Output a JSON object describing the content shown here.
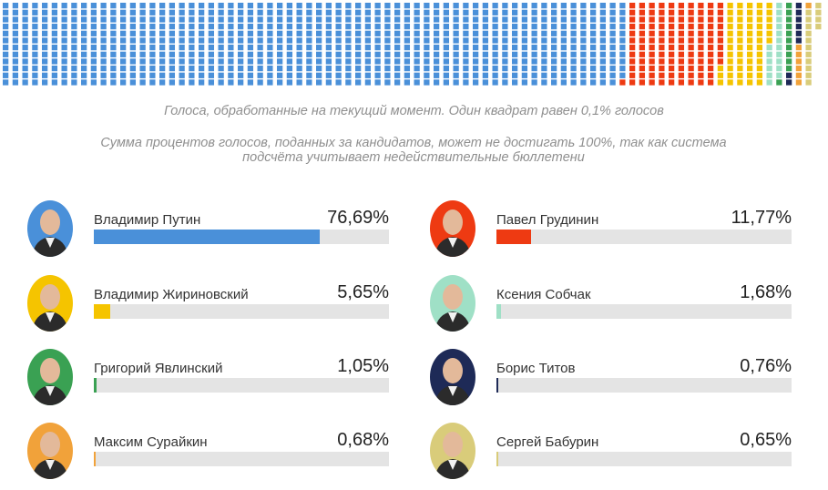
{
  "notes": {
    "line1": "Голоса, обработанные на текущий момент. Один квадрат равен 0,1% голосов",
    "line2": "Сумма процентов голосов, поданных за кандидатов, может не достигать 100%, так как система подсчёта учитывает недействительные бюллетени"
  },
  "chart_data": {
    "type": "bar",
    "categories": [
      "Владимир Путин",
      "Павел Грудинин",
      "Владимир Жириновский",
      "Ксения Собчак",
      "Григорий Явлинский",
      "Борис Титов",
      "Максим Сурайкин",
      "Сергей Бабурин"
    ],
    "series": [
      {
        "values": [
          76.69,
          11.77,
          5.65,
          1.68,
          1.05,
          0.76,
          0.68,
          0.65
        ]
      }
    ],
    "value_labels": [
      "76,69%",
      "11,77%",
      "5,65%",
      "1,68%",
      "1,05%",
      "0,76%",
      "0,68%",
      "0,65%"
    ],
    "colors": [
      "#4a90d9",
      "#ee3a12",
      "#f5c400",
      "#9fe0c6",
      "#3aa153",
      "#1e2a57",
      "#f1a23a",
      "#d9cc7a"
    ],
    "ylim": [
      0,
      100
    ],
    "waffle": {
      "square_value_percent": 0.1,
      "shares_percent": [
        76.69,
        11.77,
        5.65,
        1.68,
        1.05,
        0.76,
        0.68,
        0.65
      ],
      "colors": [
        "#4a90d9",
        "#ee3a12",
        "#f5c400",
        "#9fe0c6",
        "#3aa153",
        "#1e2a57",
        "#f1a23a",
        "#d9cc7a"
      ]
    }
  },
  "candidates": [
    {
      "name": "Владимир Путин",
      "pct": "76,69%",
      "value": 76.69,
      "color": "#4a90d9",
      "avatar_bg": "#4a90d9",
      "avatar_icon": "portrait-icon"
    },
    {
      "name": "Павел Грудинин",
      "pct": "11,77%",
      "value": 11.77,
      "color": "#ee3a12",
      "avatar_bg": "#ee3a12",
      "avatar_icon": "portrait-icon"
    },
    {
      "name": "Владимир Жириновский",
      "pct": "5,65%",
      "value": 5.65,
      "color": "#f5c400",
      "avatar_bg": "#f5c400",
      "avatar_icon": "portrait-icon"
    },
    {
      "name": "Ксения Собчак",
      "pct": "1,68%",
      "value": 1.68,
      "color": "#9fe0c6",
      "avatar_bg": "#9fe0c6",
      "avatar_icon": "portrait-icon"
    },
    {
      "name": "Григорий Явлинский",
      "pct": "1,05%",
      "value": 1.05,
      "color": "#3aa153",
      "avatar_bg": "#3aa153",
      "avatar_icon": "portrait-icon"
    },
    {
      "name": "Борис Титов",
      "pct": "0,76%",
      "value": 0.76,
      "color": "#1e2a57",
      "avatar_bg": "#1e2a57",
      "avatar_icon": "portrait-icon"
    },
    {
      "name": "Максим Сурайкин",
      "pct": "0,68%",
      "value": 0.68,
      "color": "#f1a23a",
      "avatar_bg": "#f1a23a",
      "avatar_icon": "portrait-icon"
    },
    {
      "name": "Сергей Бабурин",
      "pct": "0,65%",
      "value": 0.65,
      "color": "#d9cc7a",
      "avatar_bg": "#d9cc7a",
      "avatar_icon": "portrait-icon"
    }
  ]
}
